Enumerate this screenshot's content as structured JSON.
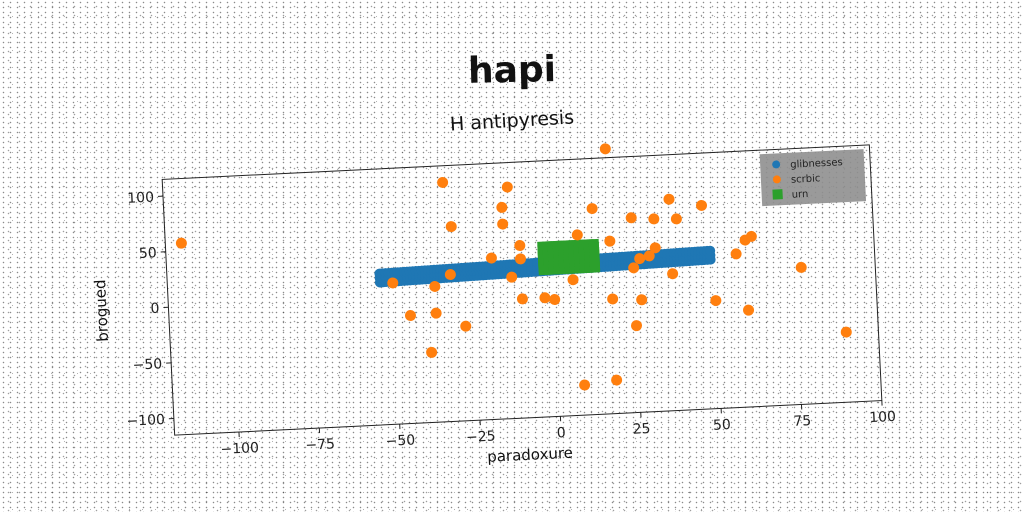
{
  "chart_data": {
    "type": "scatter",
    "title": "hapi",
    "subtitle": "H antipyresis",
    "xlabel": "paradoxure",
    "ylabel": "brogued",
    "xlim": [
      -120,
      100
    ],
    "ylim": [
      -115,
      115
    ],
    "xticks": [
      -100,
      -75,
      -50,
      -25,
      0,
      25,
      50,
      75,
      100
    ],
    "yticks": [
      -100,
      -50,
      0,
      50,
      100
    ],
    "grid": false,
    "legend_position": "top-right",
    "series": [
      {
        "name": "glibnesses",
        "color": "#1f77b4",
        "marker": "circle",
        "band": {
          "x_start": -54,
          "x_end": 49,
          "y_start": 17,
          "y_end": 23,
          "half_thickness": 4,
          "count": 110
        }
      },
      {
        "name": "scrbic",
        "color": "#ff7f0e",
        "marker": "circle",
        "points": [
          [
            -115,
            57
          ],
          [
            -33,
            100
          ],
          [
            -31,
            60
          ],
          [
            -13,
            93
          ],
          [
            -15,
            75
          ],
          [
            -15,
            60
          ],
          [
            -10,
            40
          ],
          [
            -10,
            28
          ],
          [
            -19,
            30
          ],
          [
            -13,
            12
          ],
          [
            -32,
            17
          ],
          [
            -50,
            12
          ],
          [
            -37,
            7
          ],
          [
            -37,
            -17
          ],
          [
            -45,
            -18
          ],
          [
            -28,
            -30
          ],
          [
            -39,
            -52
          ],
          [
            -10,
            -8
          ],
          [
            -3,
            -8
          ],
          [
            0,
            -10
          ],
          [
            6,
            7
          ],
          [
            8,
            47
          ],
          [
            13,
            70
          ],
          [
            18,
            40
          ],
          [
            18,
            123
          ],
          [
            25,
            60
          ],
          [
            27,
            23
          ],
          [
            30,
            25
          ],
          [
            32,
            58
          ],
          [
            37,
            75
          ],
          [
            39,
            57
          ],
          [
            37,
            8
          ],
          [
            47,
            68
          ],
          [
            32,
            32
          ],
          [
            25,
            15
          ],
          [
            18,
            -12
          ],
          [
            27,
            -14
          ],
          [
            25,
            -37
          ],
          [
            50,
            -18
          ],
          [
            57,
            23
          ],
          [
            60,
            35
          ],
          [
            62,
            38
          ],
          [
            60,
            -28
          ],
          [
            77,
            8
          ],
          [
            90,
            -52
          ],
          [
            8,
            -88
          ],
          [
            18,
            -85
          ]
        ]
      },
      {
        "name": "urn",
        "color": "#2ca02c",
        "marker": "square",
        "block": {
          "x_start": -3,
          "x_end": 13,
          "y_start": 17,
          "y_end": 40
        }
      }
    ]
  }
}
